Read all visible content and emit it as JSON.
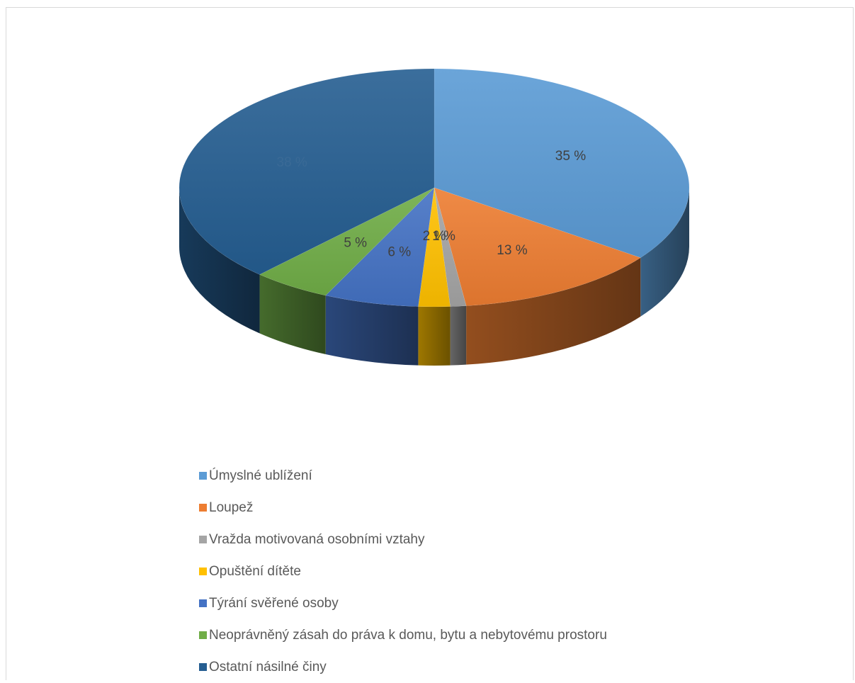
{
  "chart_data": {
    "type": "pie",
    "three_d": true,
    "unit": "%",
    "legend_position": "bottom",
    "slices": [
      {
        "label": "Úmyslné ublížení",
        "value": 35,
        "data_label": "35 %",
        "color": "#5b9bd5",
        "label_color": "#404040"
      },
      {
        "label": "Loupež",
        "value": 13,
        "data_label": "13 %",
        "color": "#ed7d31",
        "label_color": "#404040"
      },
      {
        "label": "Vražda motivovaná osobními vztahy",
        "value": 1,
        "data_label": "1 %",
        "color": "#a5a5a5",
        "label_color": "#404040"
      },
      {
        "label": "Opuštění dítěte",
        "value": 2,
        "data_label": "2 %",
        "color": "#ffc000",
        "label_color": "#404040"
      },
      {
        "label": "Týrání svěřené osoby",
        "value": 6,
        "data_label": "6 %",
        "color": "#4472c4",
        "label_color": "#404040"
      },
      {
        "label": "Neoprávněný zásah do práva k domu, bytu a nebytovému prostoru",
        "value": 5,
        "data_label": "5 %",
        "color": "#70ad47",
        "label_color": "#404040"
      },
      {
        "label": "Ostatní násilné činy",
        "value": 38,
        "data_label": "38 %",
        "color": "#255e91",
        "label_color": "#3a6a96"
      }
    ]
  }
}
